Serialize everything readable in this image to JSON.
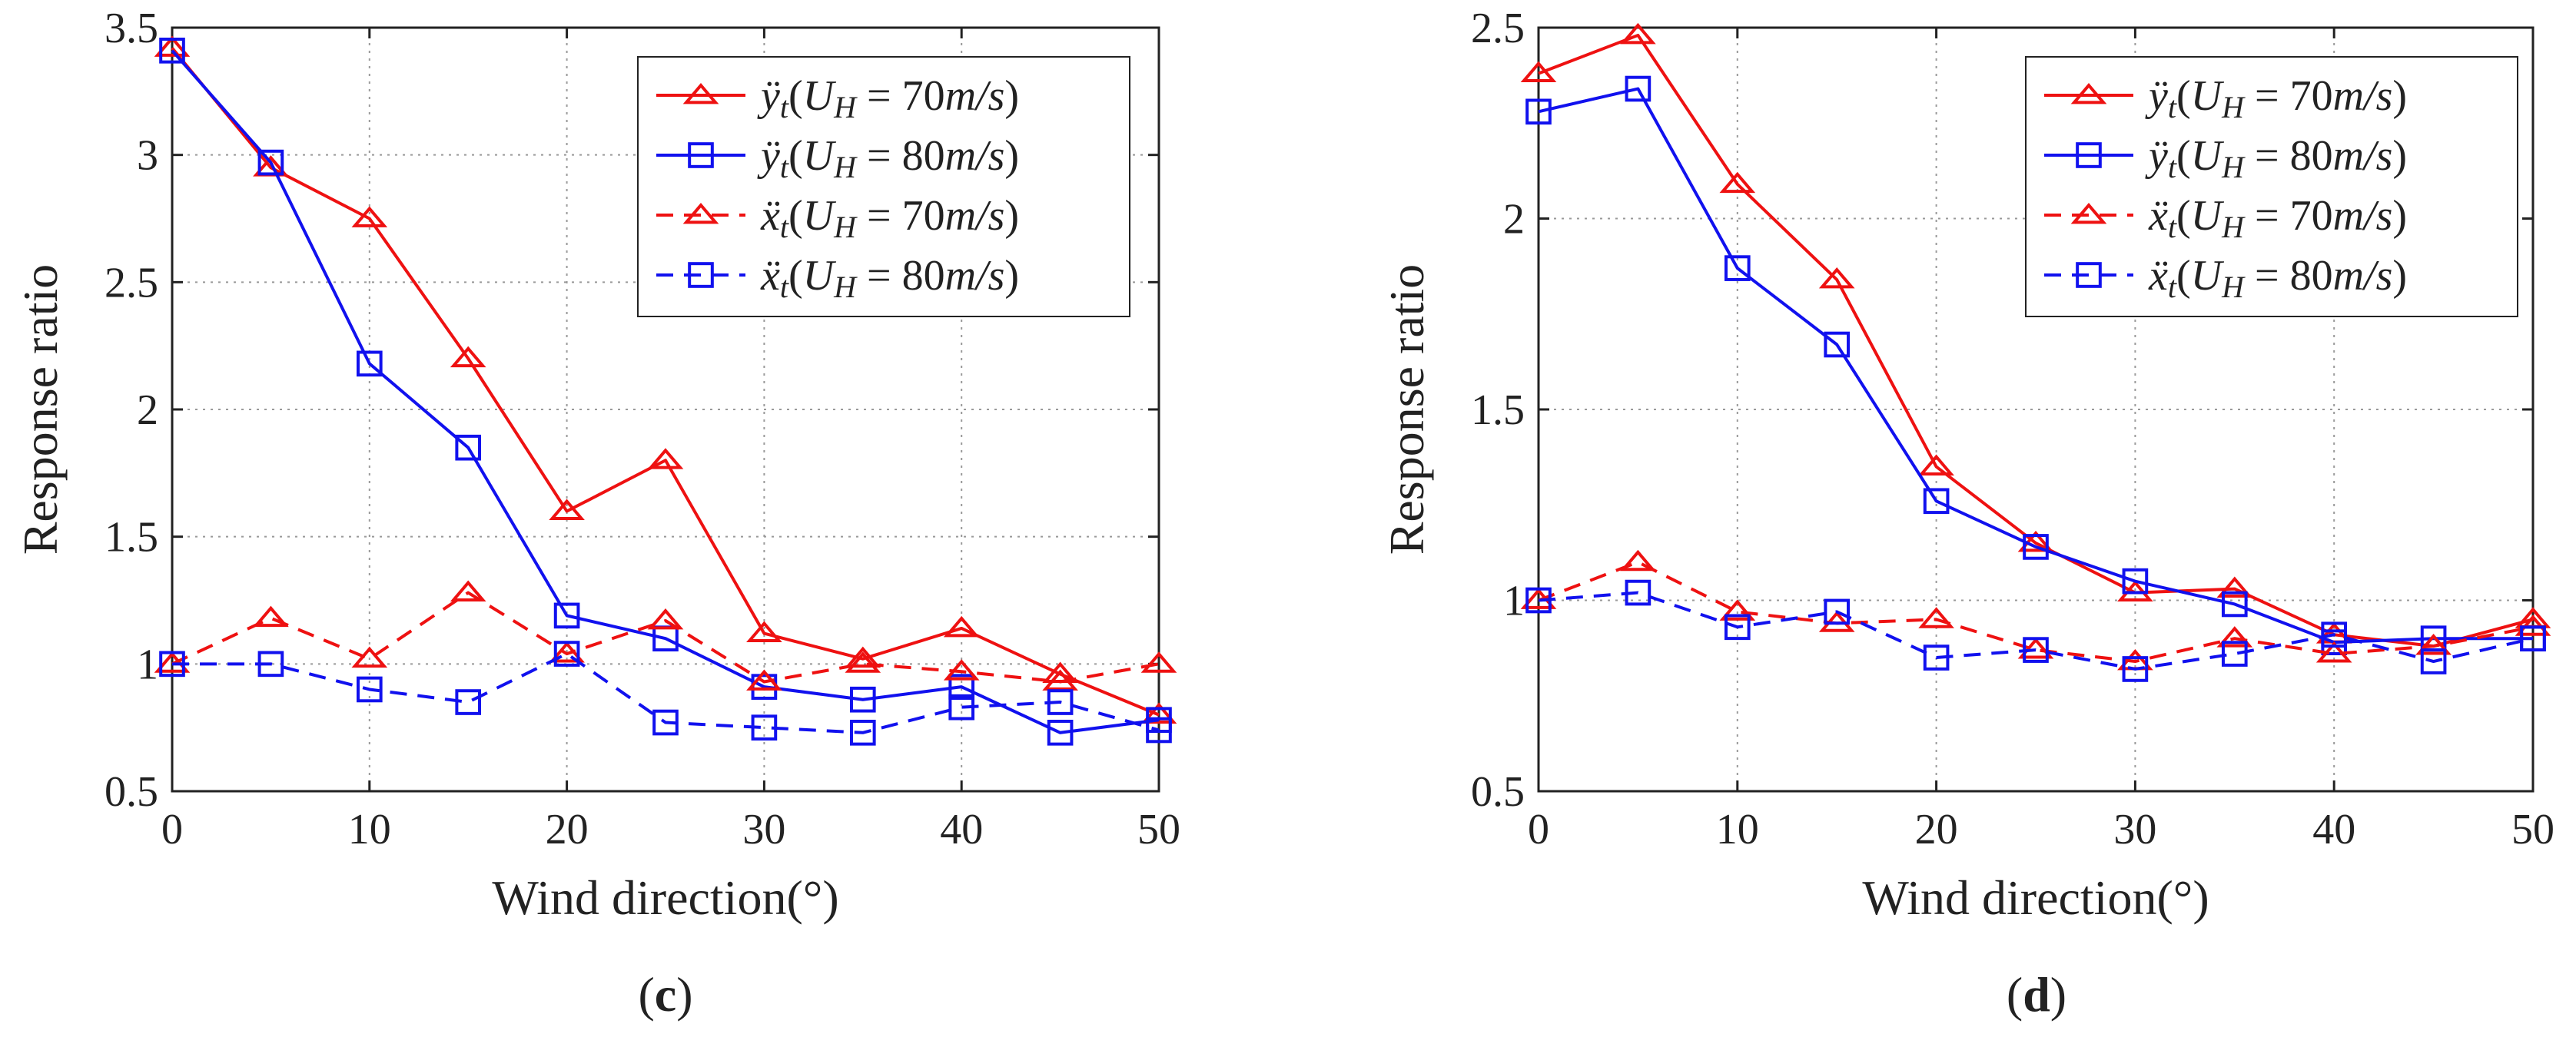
{
  "chart_data": [
    {
      "panel": "(c)",
      "panel_letter": "c",
      "type": "line",
      "xlabel": "Wind direction(°)",
      "ylabel": "Response ratio",
      "xlim": [
        0,
        50
      ],
      "ylim": [
        0.5,
        3.5
      ],
      "xticks": [
        0,
        10,
        20,
        30,
        40,
        50
      ],
      "yticks": [
        0.5,
        1,
        1.5,
        2,
        2.5,
        3,
        3.5
      ],
      "ytick_labels": [
        "0.5",
        "1",
        "1.5",
        "2",
        "2.5",
        "3",
        "3.5"
      ],
      "grid": true,
      "legend_position": "top-right",
      "x": [
        0,
        5,
        10,
        15,
        20,
        25,
        30,
        35,
        40,
        45,
        50
      ],
      "series": [
        {
          "name": "ÿt(UH = 70m/s)",
          "label_parts": {
            "sym": "ÿ",
            "sub": "t",
            "speed": "70"
          },
          "color": "#ee1111",
          "dash": "solid",
          "marker": "triangle",
          "values": [
            3.42,
            2.95,
            2.75,
            2.2,
            1.6,
            1.8,
            1.12,
            1.02,
            1.14,
            0.96,
            0.8
          ]
        },
        {
          "name": "ÿt(UH = 80m/s)",
          "label_parts": {
            "sym": "ÿ",
            "sub": "t",
            "speed": "80"
          },
          "color": "#1111ee",
          "dash": "solid",
          "marker": "square",
          "values": [
            3.41,
            2.97,
            2.18,
            1.85,
            1.19,
            1.1,
            0.91,
            0.86,
            0.91,
            0.73,
            0.78
          ]
        },
        {
          "name": "ẍt(UH = 70m/s)",
          "label_parts": {
            "sym": "ẍ",
            "sub": "t",
            "speed": "70"
          },
          "color": "#ee1111",
          "dash": "dashed",
          "marker": "triangle",
          "values": [
            1.0,
            1.18,
            1.02,
            1.28,
            1.04,
            1.17,
            0.93,
            1.0,
            0.97,
            0.93,
            1.0
          ]
        },
        {
          "name": "ẍt(UH = 80m/s)",
          "label_parts": {
            "sym": "ẍ",
            "sub": "t",
            "speed": "80"
          },
          "color": "#1111ee",
          "dash": "dashed",
          "marker": "square",
          "values": [
            1.0,
            1.0,
            0.9,
            0.85,
            1.04,
            0.77,
            0.75,
            0.73,
            0.83,
            0.85,
            0.74
          ]
        }
      ]
    },
    {
      "panel": "(d)",
      "panel_letter": "d",
      "type": "line",
      "xlabel": "Wind direction(°)",
      "ylabel": "Response ratio",
      "xlim": [
        0,
        50
      ],
      "ylim": [
        0.5,
        2.5
      ],
      "xticks": [
        0,
        10,
        20,
        30,
        40,
        50
      ],
      "yticks": [
        0.5,
        1,
        1.5,
        2,
        2.5
      ],
      "ytick_labels": [
        "0.5",
        "1",
        "1.5",
        "2",
        "2.5"
      ],
      "grid": true,
      "legend_position": "top-right",
      "x": [
        0,
        5,
        10,
        15,
        20,
        25,
        30,
        35,
        40,
        45,
        50
      ],
      "series": [
        {
          "name": "ÿt(UH = 70m/s)",
          "label_parts": {
            "sym": "ÿ",
            "sub": "t",
            "speed": "70"
          },
          "color": "#ee1111",
          "dash": "solid",
          "marker": "triangle",
          "values": [
            2.38,
            2.48,
            2.09,
            1.84,
            1.35,
            1.15,
            1.02,
            1.03,
            0.91,
            0.88,
            0.95
          ]
        },
        {
          "name": "ÿt(UH = 80m/s)",
          "label_parts": {
            "sym": "ÿ",
            "sub": "t",
            "speed": "80"
          },
          "color": "#1111ee",
          "dash": "solid",
          "marker": "square",
          "values": [
            2.28,
            2.34,
            1.87,
            1.67,
            1.26,
            1.14,
            1.05,
            0.99,
            0.89,
            0.9,
            0.9
          ]
        },
        {
          "name": "ẍt(UH = 70m/s)",
          "label_parts": {
            "sym": "ẍ",
            "sub": "t",
            "speed": "70"
          },
          "color": "#ee1111",
          "dash": "dashed",
          "marker": "triangle",
          "values": [
            1.0,
            1.1,
            0.97,
            0.94,
            0.95,
            0.87,
            0.84,
            0.9,
            0.86,
            0.88,
            0.93
          ]
        },
        {
          "name": "ẍt(UH = 80m/s)",
          "label_parts": {
            "sym": "ẍ",
            "sub": "t",
            "speed": "80"
          },
          "color": "#1111ee",
          "dash": "dashed",
          "marker": "square",
          "values": [
            1.0,
            1.02,
            0.93,
            0.97,
            0.85,
            0.87,
            0.82,
            0.86,
            0.91,
            0.84,
            0.9
          ]
        }
      ]
    }
  ]
}
